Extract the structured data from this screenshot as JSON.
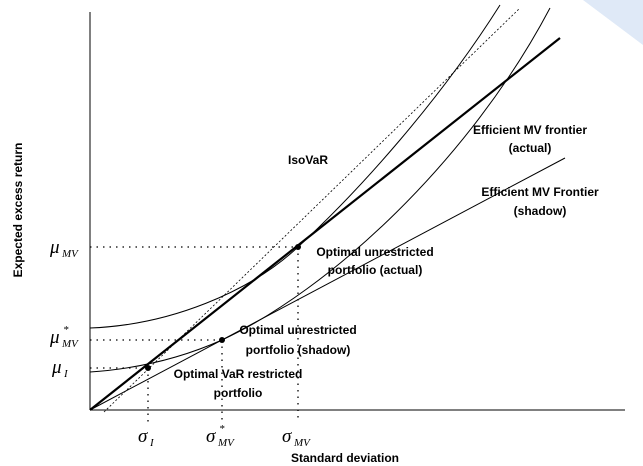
{
  "axes": {
    "y_label": "Expected excess return",
    "x_label": "Standard deviation"
  },
  "y_markers": [
    {
      "symbol": "μ",
      "subscript": "MV"
    },
    {
      "symbol": "μ",
      "superscript": "*",
      "subscript": "MV"
    },
    {
      "symbol": "μ",
      "subscript": "I"
    }
  ],
  "x_markers": [
    {
      "symbol": "σ",
      "subscript": "I"
    },
    {
      "symbol": "σ",
      "superscript": "*",
      "subscript": "MV"
    },
    {
      "symbol": "σ",
      "subscript": "MV"
    }
  ],
  "annotations": {
    "isovar": "IsoVaR",
    "frontier_actual": [
      "Efficient MV frontier",
      "(actual)"
    ],
    "frontier_shadow": [
      "Efficient MV Frontier",
      "(shadow)"
    ],
    "optimal_actual": [
      "Optimal unrestricted",
      "portfolio (actual)"
    ],
    "optimal_shadow": [
      "Optimal unrestricted",
      "portfolio (shadow)"
    ],
    "optimal_var": [
      "Optimal VaR restricted",
      "portfolio"
    ]
  }
}
